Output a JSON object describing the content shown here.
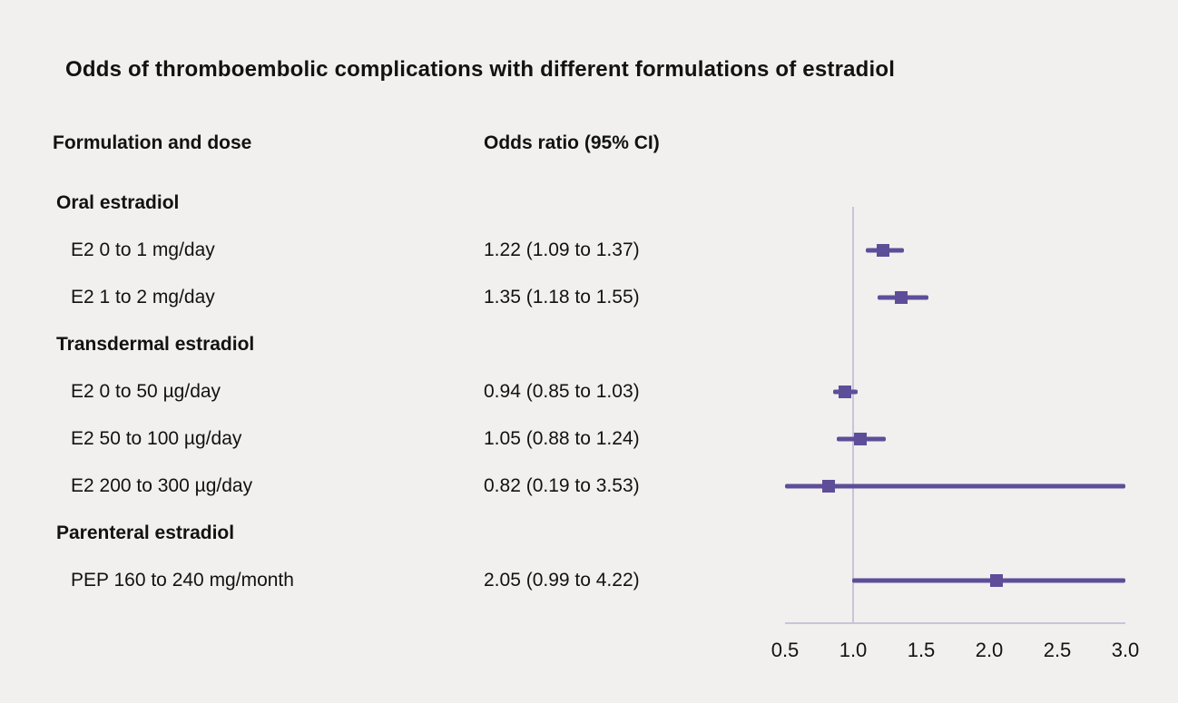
{
  "title": "Odds of thromboembolic complications with different formulations of estradiol",
  "columns": {
    "formulation": "Formulation and dose",
    "odds_ratio": "Odds ratio (95% CI)"
  },
  "colors": {
    "accent": "#5e4e99",
    "axis": "#c7c5d6",
    "text": "#121212",
    "background": "#f1f0ee"
  },
  "chart_data": {
    "type": "forest",
    "title": "Odds of thromboembolic complications with different formulations of estradiol",
    "xlabel": "Odds ratio",
    "axis": {
      "min": 0.5,
      "max": 3.0,
      "ticks": [
        0.5,
        1.0,
        1.5,
        2.0,
        2.5,
        3.0
      ],
      "reference": 1.0,
      "grid": false
    },
    "rows": [
      {
        "label": "Oral estradiol",
        "group": true
      },
      {
        "label": "E2 0 to 1 mg/day",
        "or_text": "1.22 (1.09 to 1.37)",
        "est": 1.22,
        "lo": 1.09,
        "hi": 1.37
      },
      {
        "label": "E2 1 to 2 mg/day",
        "or_text": "1.35 (1.18 to 1.55)",
        "est": 1.35,
        "lo": 1.18,
        "hi": 1.55
      },
      {
        "label": "Transdermal estradiol",
        "group": true
      },
      {
        "label": "E2 0 to 50 µg/day",
        "or_text": "0.94 (0.85 to 1.03)",
        "est": 0.94,
        "lo": 0.85,
        "hi": 1.03
      },
      {
        "label": "E2 50 to 100 µg/day",
        "or_text": "1.05 (0.88 to 1.24)",
        "est": 1.05,
        "lo": 0.88,
        "hi": 1.24
      },
      {
        "label": "E2 200 to 300 µg/day",
        "or_text": "0.82 (0.19 to 3.53)",
        "est": 0.82,
        "lo": 0.19,
        "hi": 3.53
      },
      {
        "label": "Parenteral estradiol",
        "group": true
      },
      {
        "label": "PEP 160 to 240 mg/month",
        "or_text": "2.05 (0.99 to 4.22)",
        "est": 2.05,
        "lo": 0.99,
        "hi": 4.22
      }
    ]
  }
}
